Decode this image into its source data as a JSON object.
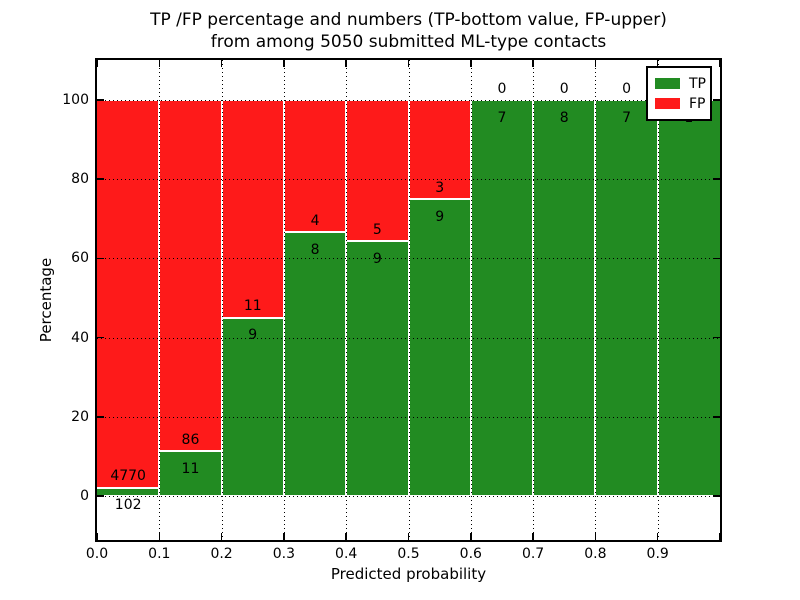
{
  "title": {
    "line1": "TP /FP percentage and numbers (TP-bottom value, FP-upper)",
    "line2": "from among 5050 submitted ML-type contacts"
  },
  "axes": {
    "xlabel": "Predicted probability",
    "ylabel": "Percentage",
    "x_tick_labels": [
      "0.0",
      "0.1",
      "0.2",
      "0.3",
      "0.4",
      "0.5",
      "0.6",
      "0.7",
      "0.8",
      "0.9"
    ],
    "y_tick_labels": [
      "0",
      "20",
      "40",
      "60",
      "80",
      "100"
    ],
    "y_tick_values": [
      0,
      20,
      40,
      60,
      80,
      100
    ],
    "xlim": [
      0.0,
      1.0
    ],
    "ylim": [
      -11,
      110
    ],
    "grid_style": "dotted"
  },
  "legend": {
    "position": "upper-right",
    "entries": [
      {
        "label": "TP",
        "color": "#228b22"
      },
      {
        "label": "FP",
        "color": "#fe1a1a"
      }
    ]
  },
  "chart_data": {
    "type": "bar",
    "stacked": true,
    "normalized": "each bin scaled to 100%",
    "title": "TP /FP percentage and numbers (TP-bottom value, FP-upper) from among 5050 submitted ML-type contacts",
    "xlabel": "Predicted probability",
    "ylabel": "Percentage",
    "total_contacts": 5050,
    "bin_width": 0.1,
    "categories": [
      "0.0-0.1",
      "0.1-0.2",
      "0.2-0.3",
      "0.3-0.4",
      "0.4-0.5",
      "0.5-0.6",
      "0.6-0.7",
      "0.7-0.8",
      "0.8-0.9",
      "0.9-1.0"
    ],
    "series": [
      {
        "name": "TP",
        "color": "#228b22",
        "values": [
          102,
          11,
          9,
          8,
          9,
          9,
          7,
          8,
          7,
          1
        ]
      },
      {
        "name": "FP",
        "color": "#fe1a1a",
        "values": [
          4770,
          86,
          11,
          4,
          5,
          3,
          0,
          0,
          0,
          0
        ]
      }
    ],
    "bins": [
      {
        "range": [
          0.0,
          0.1
        ],
        "tp": 102,
        "fp": 4770,
        "tp_pct": 2.09
      },
      {
        "range": [
          0.1,
          0.2
        ],
        "tp": 11,
        "fp": 86,
        "tp_pct": 11.34
      },
      {
        "range": [
          0.2,
          0.3
        ],
        "tp": 9,
        "fp": 11,
        "tp_pct": 45.0
      },
      {
        "range": [
          0.3,
          0.4
        ],
        "tp": 8,
        "fp": 4,
        "tp_pct": 66.67
      },
      {
        "range": [
          0.4,
          0.5
        ],
        "tp": 9,
        "fp": 5,
        "tp_pct": 64.29
      },
      {
        "range": [
          0.5,
          0.6
        ],
        "tp": 9,
        "fp": 3,
        "tp_pct": 75.0
      },
      {
        "range": [
          0.6,
          0.7
        ],
        "tp": 7,
        "fp": 0,
        "tp_pct": 100.0
      },
      {
        "range": [
          0.7,
          0.8
        ],
        "tp": 8,
        "fp": 0,
        "tp_pct": 100.0
      },
      {
        "range": [
          0.8,
          0.9
        ],
        "tp": 7,
        "fp": 0,
        "tp_pct": 100.0
      },
      {
        "range": [
          0.9,
          1.0
        ],
        "tp": 1,
        "fp": 0,
        "tp_pct": 100.0
      }
    ]
  },
  "colors": {
    "tp": "#228b22",
    "fp": "#fe1a1a",
    "background": "#ffffff",
    "text": "#000000",
    "grid": "#000000",
    "bar_edge": "#ffffff"
  }
}
